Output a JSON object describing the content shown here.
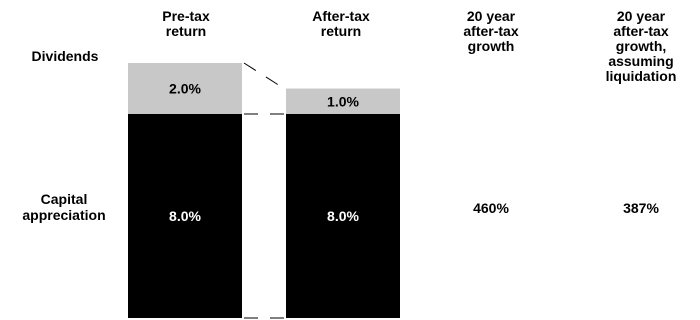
{
  "chart_data": {
    "type": "bar",
    "stacked": true,
    "columns": [
      "Pre-tax\nreturn",
      "After-tax\nreturn",
      "20 year\nafter-tax\ngrowth",
      "20 year\nafter-tax\ngrowth,\nassuming\nliquidation"
    ],
    "categories": [
      "Pre-tax return",
      "After-tax return"
    ],
    "series": [
      {
        "name": "Capital appreciation",
        "row_label": "Capital\nappreciation",
        "values": [
          8.0,
          8.0
        ],
        "labels": [
          "8.0%",
          "8.0%"
        ],
        "color": "#000000",
        "label_color": "#ffffff"
      },
      {
        "name": "Dividends",
        "row_label": "Dividends",
        "values": [
          2.0,
          1.0
        ],
        "labels": [
          "2.0%",
          "1.0%"
        ],
        "color": "#c8c8c8",
        "label_color": "#000000"
      }
    ],
    "growth": [
      {
        "column": "20 year after-tax growth",
        "value": 460,
        "label": "460%"
      },
      {
        "column": "20 year after-tax growth, assuming liquidation",
        "value": 387,
        "label": "387%"
      }
    ],
    "connector_lines": true,
    "ylim": [
      0,
      10.5
    ],
    "grid": false,
    "legend": "none",
    "xlabel": "",
    "ylabel": ""
  }
}
